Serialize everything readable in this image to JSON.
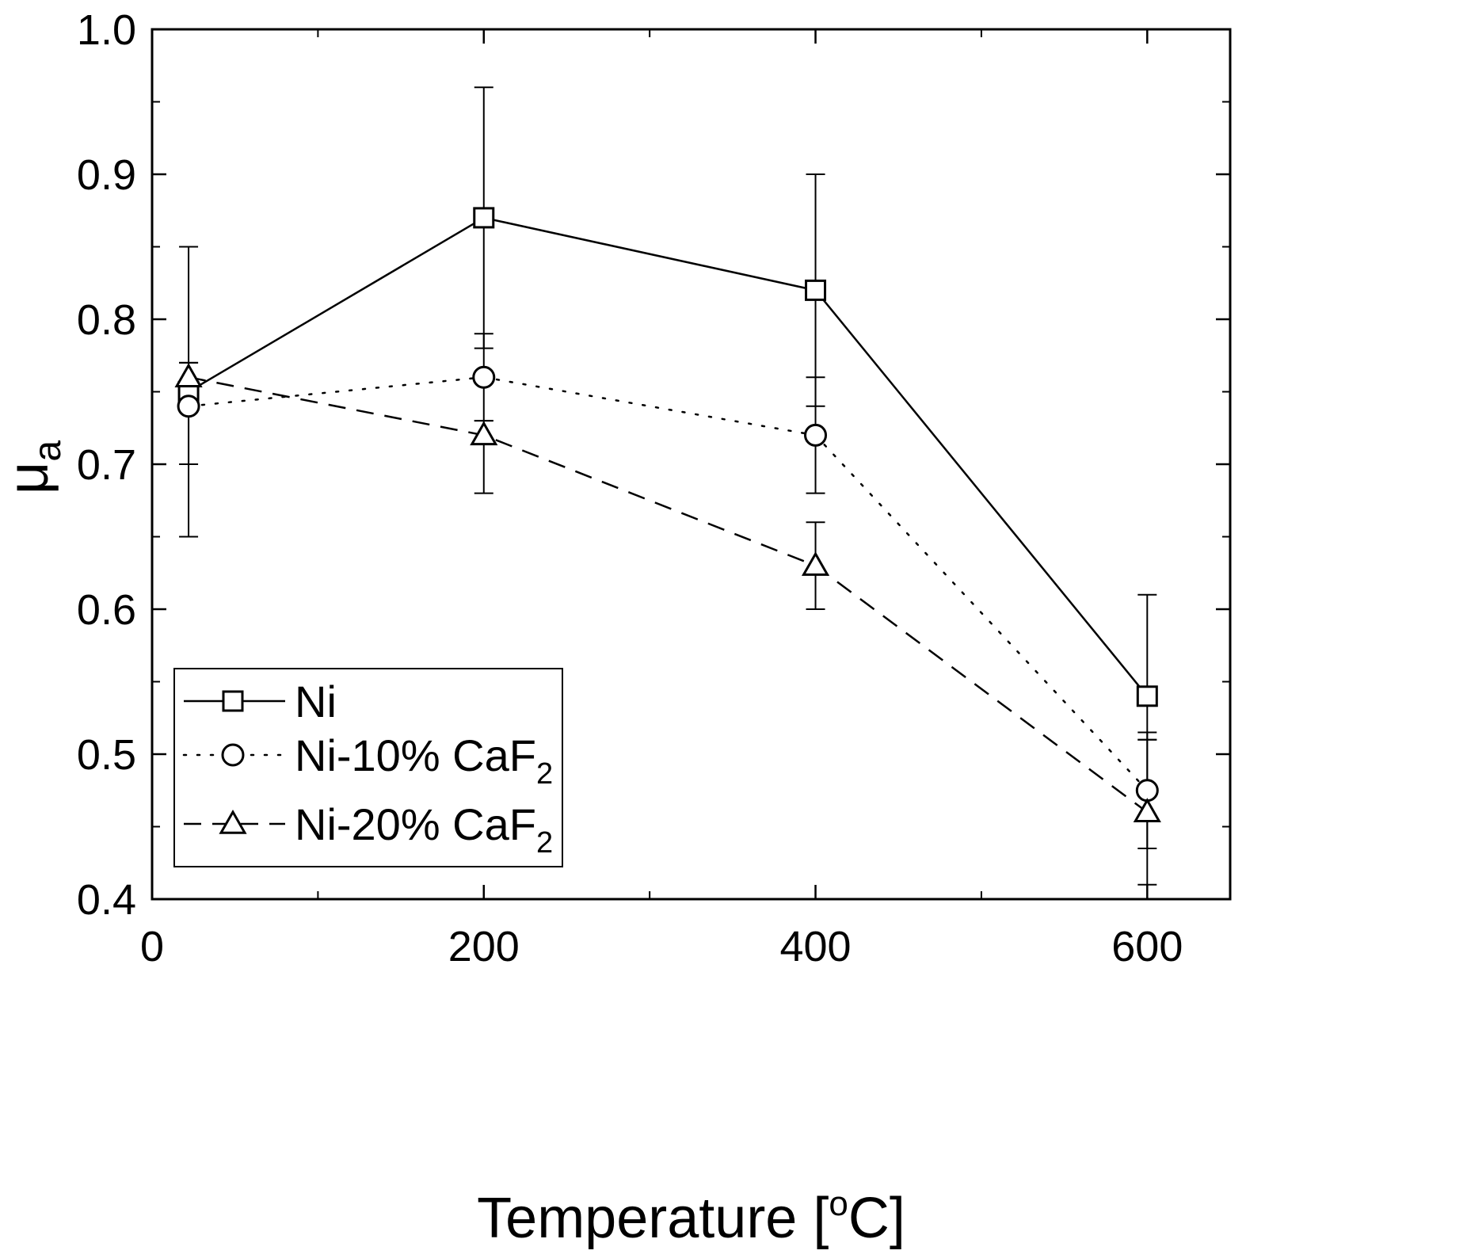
{
  "chart_data": {
    "type": "line",
    "title": "",
    "xlabel": "Temperature [°C]",
    "xlabel_parts": {
      "main": "Temperature [",
      "sup": "o",
      "unit": "C]"
    },
    "ylabel": "μa",
    "ylabel_parts": {
      "main": "μ",
      "sub": "a"
    },
    "xlim": [
      0,
      650
    ],
    "ylim": [
      0.4,
      1.0
    ],
    "xticks": [
      0,
      200,
      400,
      600
    ],
    "xtick_labels": [
      "0",
      "200",
      "400",
      "600"
    ],
    "xminor_ticks": [
      100,
      300,
      500
    ],
    "yticks": [
      0.4,
      0.5,
      0.6,
      0.7,
      0.8,
      0.9,
      1.0
    ],
    "ytick_labels": [
      "0.4",
      "0.5",
      "0.6",
      "0.7",
      "0.8",
      "0.9",
      "1.0"
    ],
    "yminor_ticks": [
      0.45,
      0.55,
      0.65,
      0.75,
      0.85,
      0.95
    ],
    "grid": false,
    "legend_position": "bottom-left",
    "series": [
      {
        "name": "Ni",
        "label_main": "Ni",
        "label_sub": "",
        "marker": "square",
        "line": "solid",
        "color": "#000000",
        "x": [
          22,
          200,
          400,
          600
        ],
        "y": [
          0.75,
          0.87,
          0.82,
          0.54
        ],
        "err_low": [
          0.65,
          0.78,
          0.74,
          0.51
        ],
        "err_high": [
          0.85,
          0.96,
          0.9,
          0.61
        ]
      },
      {
        "name": "Ni-10% CaF2",
        "label_main": "Ni-10% CaF",
        "label_sub": "2",
        "marker": "circle",
        "line": "dotted",
        "color": "#000000",
        "x": [
          22,
          200,
          400,
          600
        ],
        "y": [
          0.74,
          0.76,
          0.72,
          0.475
        ],
        "err_low": [
          0.7,
          0.73,
          0.68,
          0.435
        ],
        "err_high": [
          0.77,
          0.79,
          0.76,
          0.515
        ]
      },
      {
        "name": "Ni-20% CaF2",
        "label_main": "Ni-20% CaF",
        "label_sub": "2",
        "marker": "triangle",
        "line": "dashed",
        "color": "#000000",
        "x": [
          22,
          200,
          400,
          600
        ],
        "y": [
          0.76,
          0.72,
          0.63,
          0.46
        ],
        "err_low": [
          0.75,
          0.68,
          0.6,
          0.41
        ],
        "err_high": [
          0.77,
          0.73,
          0.66,
          0.51
        ]
      }
    ]
  }
}
